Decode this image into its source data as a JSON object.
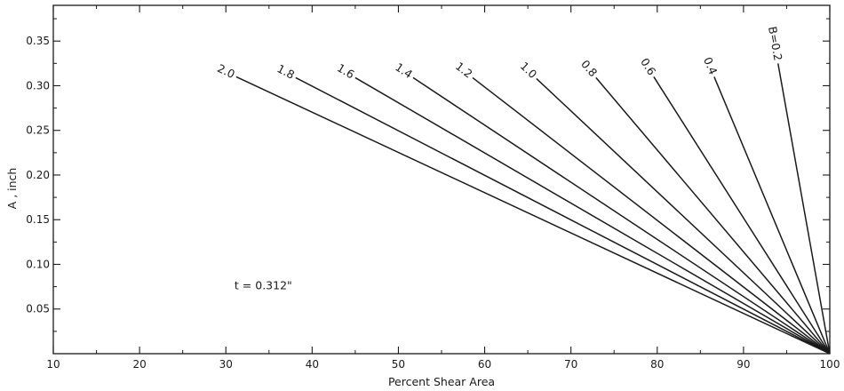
{
  "chart_data": {
    "type": "line",
    "title": "",
    "xlabel": "Percent Shear Area",
    "ylabel": "A , inch",
    "xlim": [
      10,
      100
    ],
    "ylim": [
      0,
      0.39
    ],
    "grid": false,
    "legend": "none",
    "x_ticks": [
      "10",
      "20",
      "30",
      "40",
      "50",
      "60",
      "70",
      "80",
      "90",
      "100"
    ],
    "y_ticks": [
      "0.05",
      "0.10",
      "0.15",
      "0.20",
      "0.25",
      "0.30",
      "0.35"
    ],
    "annotations": [
      {
        "text": "t = 0.312\"",
        "x": 31,
        "y": 0.072
      }
    ],
    "series": [
      {
        "name": "B=0.2",
        "x": [
          94.0,
          100
        ],
        "y": [
          0.325,
          0
        ]
      },
      {
        "name": "0.4",
        "x": [
          86.6,
          100
        ],
        "y": [
          0.31,
          0
        ]
      },
      {
        "name": "0.6",
        "x": [
          79.6,
          100
        ],
        "y": [
          0.31,
          0
        ]
      },
      {
        "name": "0.8",
        "x": [
          72.9,
          100
        ],
        "y": [
          0.309,
          0
        ]
      },
      {
        "name": "1.0",
        "x": [
          66.0,
          100
        ],
        "y": [
          0.308,
          0
        ]
      },
      {
        "name": "1.2",
        "x": [
          58.6,
          100
        ],
        "y": [
          0.309,
          0
        ]
      },
      {
        "name": "1.4",
        "x": [
          51.7,
          100
        ],
        "y": [
          0.309,
          0
        ]
      },
      {
        "name": "1.6",
        "x": [
          45.0,
          100
        ],
        "y": [
          0.309,
          0
        ]
      },
      {
        "name": "1.8",
        "x": [
          38.1,
          100
        ],
        "y": [
          0.309,
          0
        ]
      },
      {
        "name": "2.0",
        "x": [
          31.2,
          100
        ],
        "y": [
          0.31,
          0
        ]
      }
    ]
  }
}
